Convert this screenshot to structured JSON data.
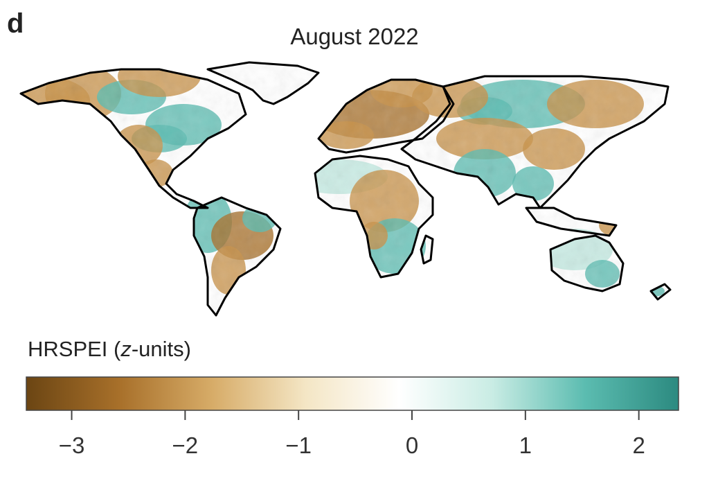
{
  "panel_letter": "d",
  "title": "August 2022",
  "colorbar": {
    "label_prefix": "HRSPEI (",
    "label_var": "z",
    "label_suffix": "-units)",
    "min": -3.4,
    "max": 2.35,
    "ticks": [
      {
        "value": -3,
        "label": "−3"
      },
      {
        "value": -2,
        "label": "−2"
      },
      {
        "value": -1,
        "label": "−1"
      },
      {
        "value": 0,
        "label": "0"
      },
      {
        "value": 1,
        "label": "1"
      },
      {
        "value": 2,
        "label": "2"
      }
    ],
    "colors": [
      "#6b4513",
      "#a8702a",
      "#d7ac68",
      "#f4e6c5",
      "#ffffff",
      "#c9ece4",
      "#5bbcb0",
      "#2c8a80"
    ]
  },
  "map_colors": {
    "land": "#ffffff",
    "coast": "#000000",
    "dry": "#c8924a",
    "dry_dark": "#a8702a",
    "wet": "#5bbcb0",
    "wet_light": "#bfe7df"
  }
}
